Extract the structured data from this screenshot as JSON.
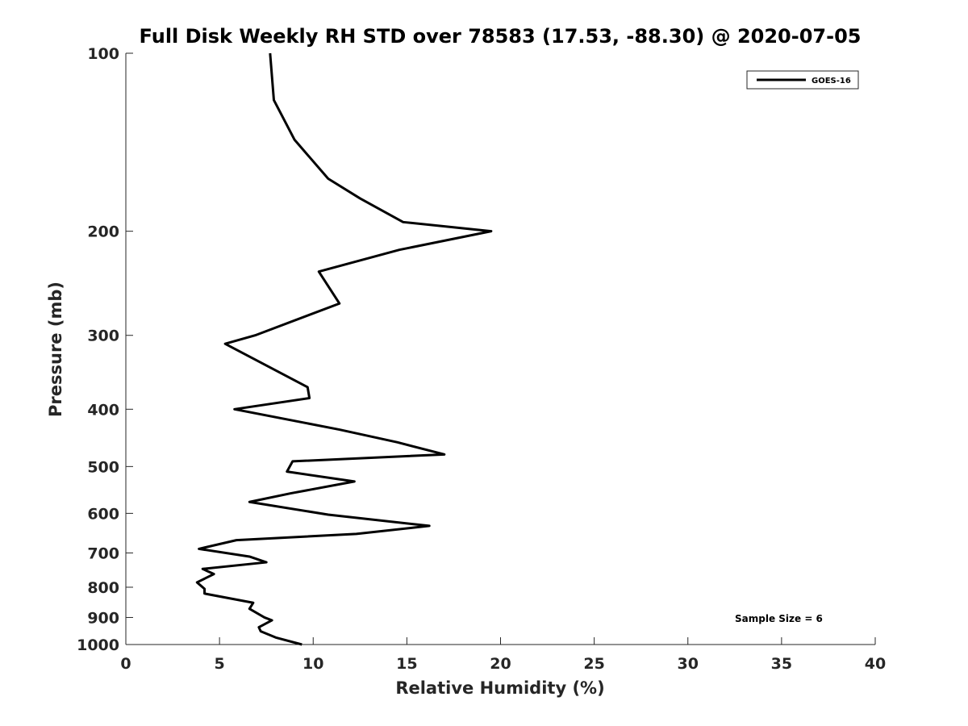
{
  "chart_data": {
    "type": "line",
    "title": "Full Disk Weekly RH STD over 78583 (17.53, -88.30) @ 2020-07-05",
    "xlabel": "Relative Humidity (%)",
    "ylabel": "Pressure (mb)",
    "xlim": [
      0,
      40
    ],
    "ylim": [
      100,
      1000
    ],
    "yscale": "log",
    "y_reversed": true,
    "grid": false,
    "xticks": [
      0,
      5,
      10,
      15,
      20,
      25,
      30,
      35,
      40
    ],
    "yticks": [
      100,
      200,
      300,
      400,
      500,
      600,
      700,
      800,
      900,
      1000
    ],
    "legend": {
      "position": "top-right",
      "entries": [
        "GOES-16"
      ]
    },
    "annotation": "Sample Size = 6",
    "series": [
      {
        "name": "GOES-16",
        "color": "#000000",
        "x": [
          7.7,
          7.9,
          9.0,
          10.8,
          12.5,
          14.8,
          19.5,
          14.6,
          10.3,
          11.4,
          6.9,
          5.3,
          9.7,
          9.8,
          5.8,
          11.4,
          14.5,
          17.0,
          8.9,
          8.6,
          12.2,
          8.8,
          6.6,
          10.8,
          16.2,
          12.3,
          5.9,
          3.9,
          6.6,
          7.5,
          4.1,
          4.7,
          3.8,
          4.2,
          4.2,
          6.8,
          6.6,
          7.4,
          7.8,
          7.1,
          7.2,
          8.0,
          9.4
        ],
        "y": [
          100,
          120,
          140,
          163,
          176,
          193,
          200,
          215,
          234,
          265,
          300,
          310,
          367,
          383,
          400,
          433,
          455,
          477,
          490,
          510,
          530,
          555,
          574,
          603,
          630,
          650,
          666,
          689,
          710,
          726,
          745,
          760,
          785,
          805,
          820,
          850,
          870,
          900,
          910,
          935,
          950,
          973,
          1000
        ]
      }
    ]
  }
}
